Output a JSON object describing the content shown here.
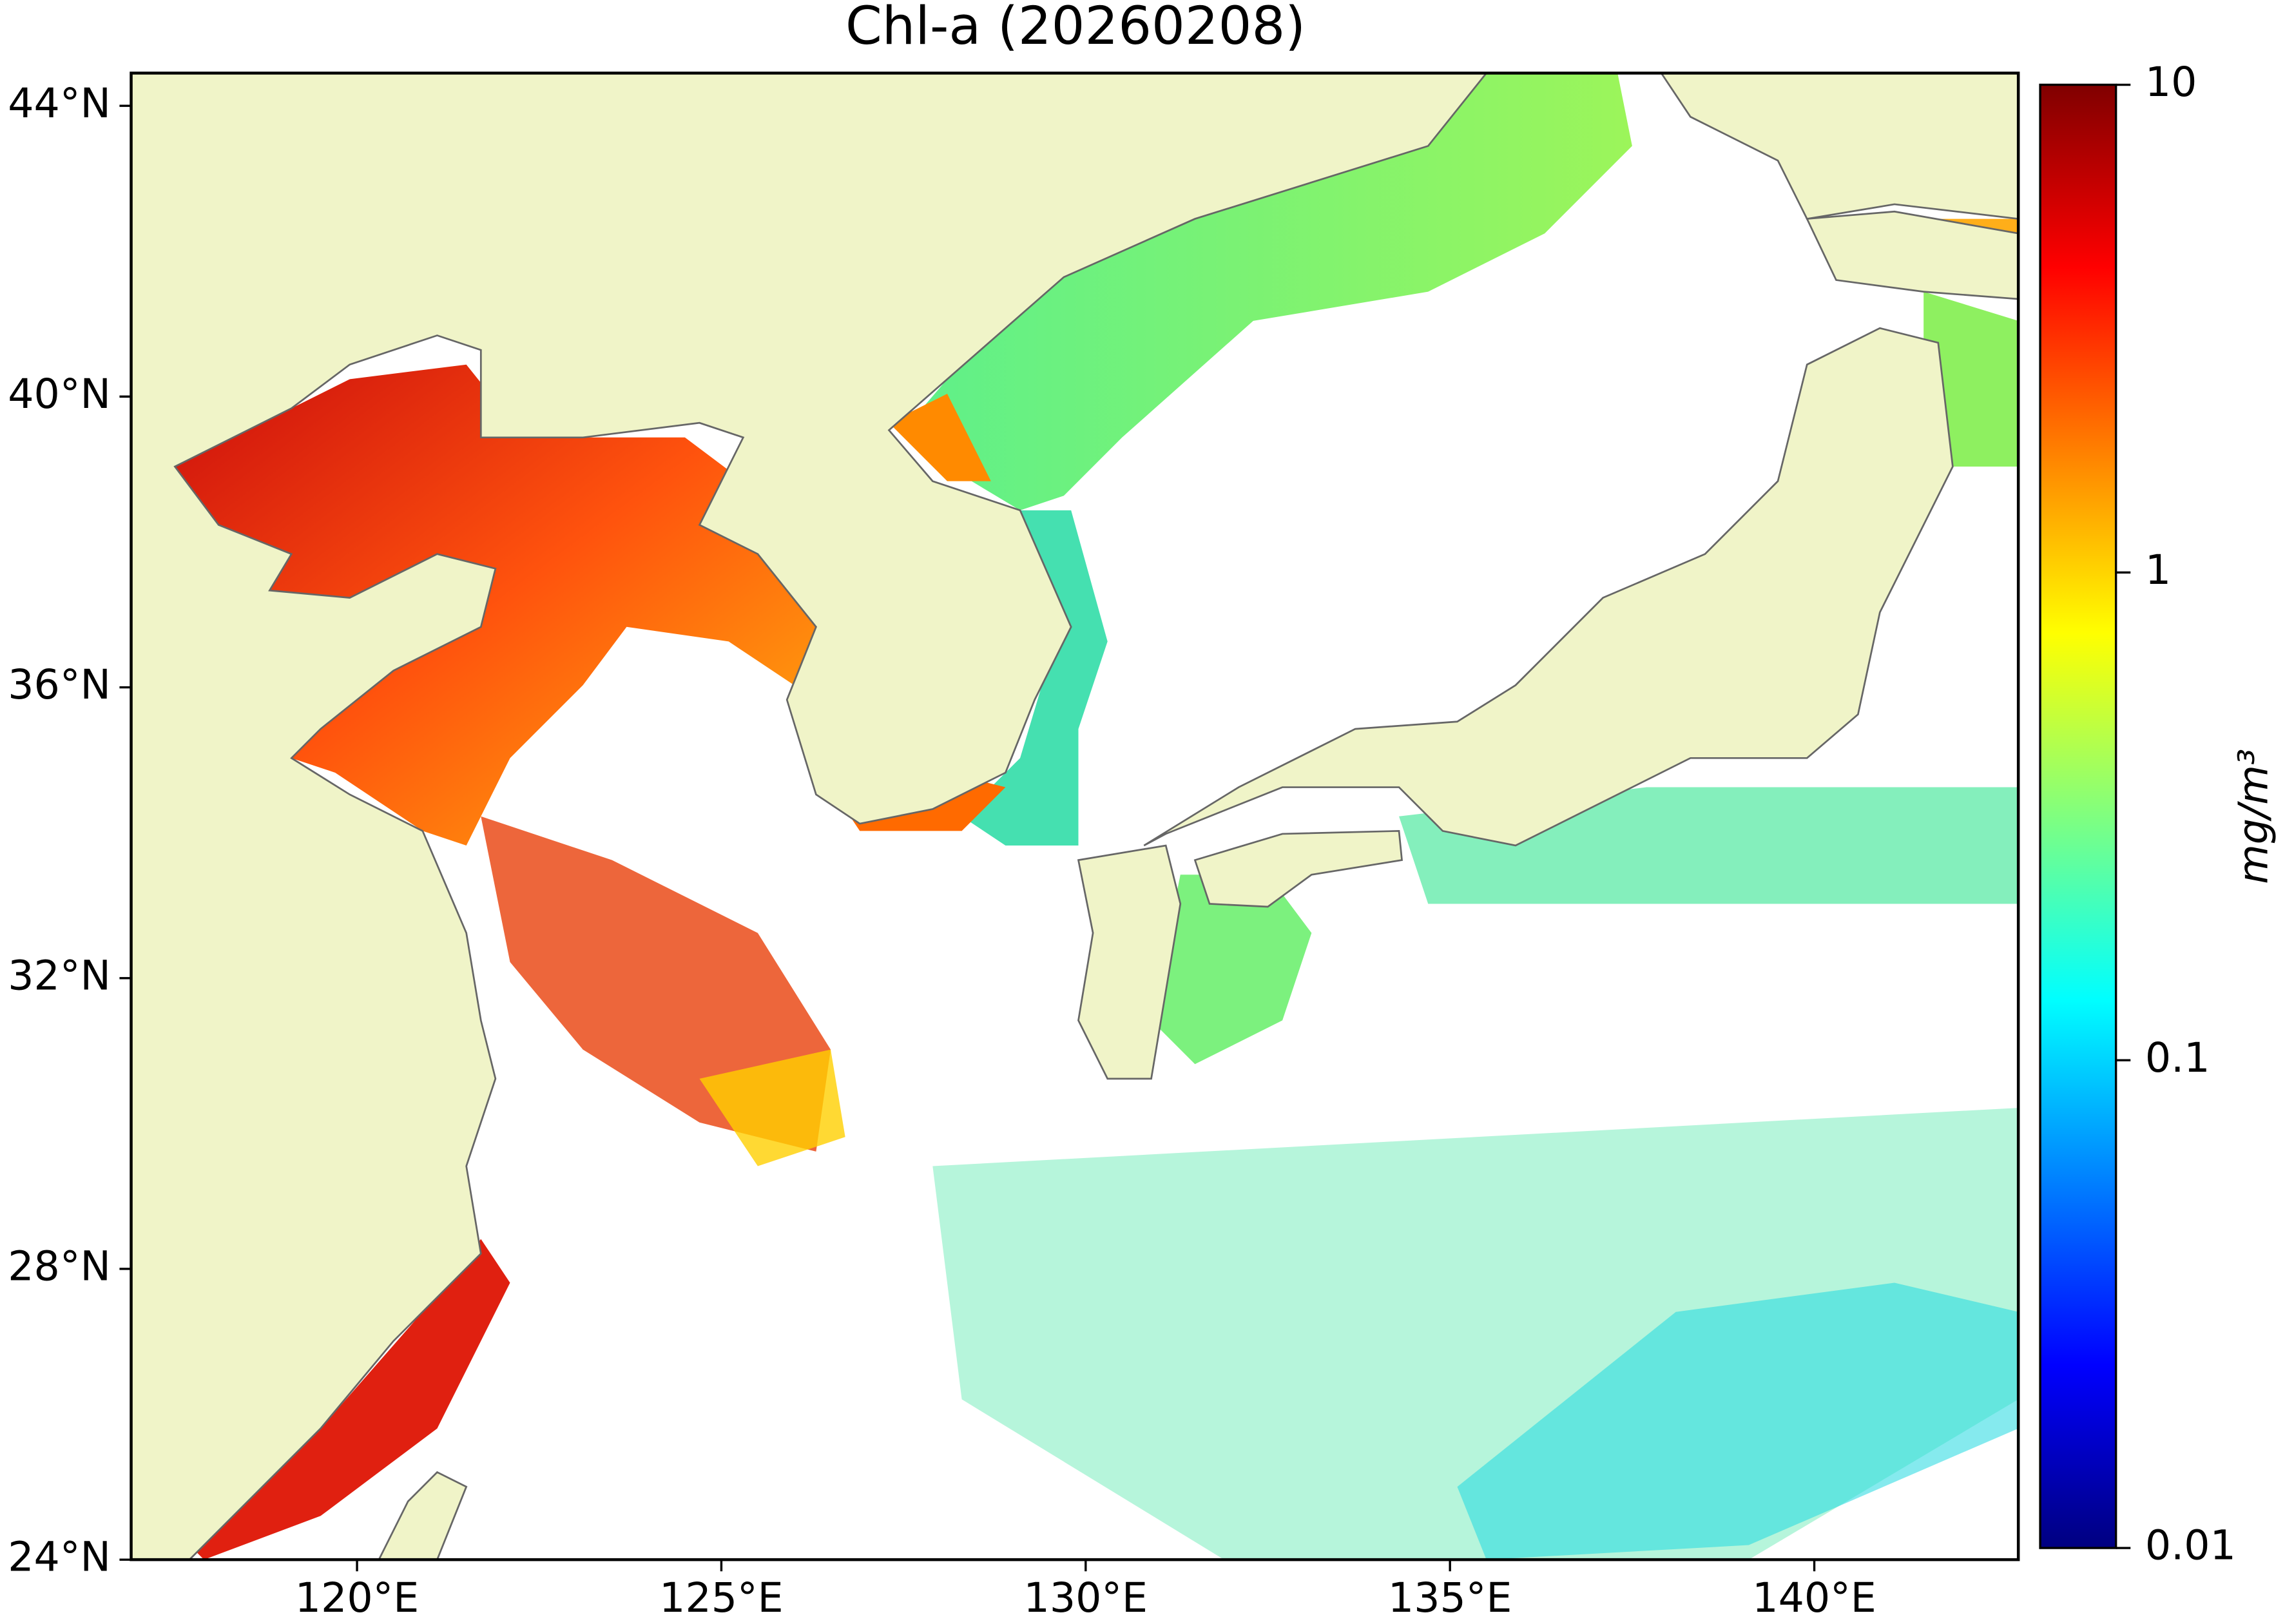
{
  "map": {
    "title": "Chl-a (20260208)",
    "xlim": [
      116.9,
      142.8
    ],
    "ylim": [
      24,
      44.45
    ],
    "xticks": [
      {
        "value": 120,
        "label": "120°E"
      },
      {
        "value": 125,
        "label": "125°E"
      },
      {
        "value": 130,
        "label": "130°E"
      },
      {
        "value": 135,
        "label": "135°E"
      },
      {
        "value": 140,
        "label": "140°E"
      }
    ],
    "yticks": [
      {
        "value": 24,
        "label": "24°N"
      },
      {
        "value": 28,
        "label": "28°N"
      },
      {
        "value": 32,
        "label": "32°N"
      },
      {
        "value": 36,
        "label": "36°N"
      },
      {
        "value": 40,
        "label": "40°N"
      },
      {
        "value": 44,
        "label": "44°N"
      }
    ],
    "colorbar": {
      "label": "mg/m³",
      "scale": "log",
      "lim": [
        0.01,
        10
      ],
      "ticks": [
        0.01,
        0.1,
        1,
        10
      ],
      "colormap": "jet"
    }
  }
}
